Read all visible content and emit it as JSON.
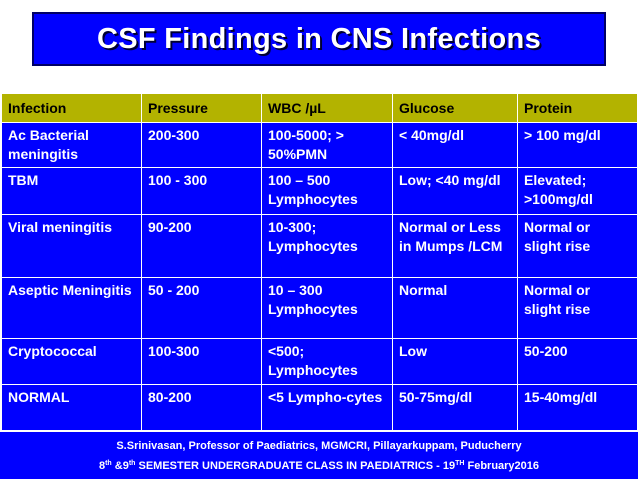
{
  "title": "CSF Findings in CNS Infections",
  "table": {
    "headers": [
      "Infection",
      "Pressure",
      "WBC /µL",
      "Glucose",
      "Protein"
    ],
    "rows": [
      [
        "Ac Bacterial meningitis",
        "200-300",
        "100-5000; > 50%PMN",
        "< 40mg/dl",
        "> 100 mg/dl"
      ],
      [
        "TBM",
        "100 - 300",
        "100 – 500 Lymphocytes",
        "Low; <40 mg/dl",
        "Elevated; >100mg/dl"
      ],
      [
        "Viral meningitis",
        "90-200",
        "10-300; Lymphocytes",
        "Normal or Less in Mumps /LCM",
        "Normal or slight rise"
      ],
      [
        "Aseptic Meningitis",
        "50 - 200",
        "10 – 300 Lymphocytes",
        "Normal",
        "Normal or slight rise"
      ],
      [
        "Cryptococcal",
        "100-300",
        "<500; Lymphocytes",
        "Low",
        "50-200"
      ],
      [
        "NORMAL",
        "80-200",
        "<5 Lympho-cytes",
        "50-75mg/dl",
        "15-40mg/dl"
      ]
    ]
  },
  "footer": {
    "line1": "S.Srinivasan, Professor of Paediatrics, MGMCRI, Pillayarkuppam, Puducherry",
    "line2_a": "8",
    "line2_sup1": "th",
    "line2_b": " &9",
    "line2_sup2": "th",
    "line2_c": " SEMESTER UNDERGRADUATE CLASS IN PAEDIATRICS -    19",
    "line2_sup3": "TH",
    "line2_d": " February2016"
  },
  "colors": {
    "background": "#ffffff",
    "cell_blue": "#0000ff",
    "header_olive": "#b3b300",
    "text_white": "#ffffff"
  }
}
